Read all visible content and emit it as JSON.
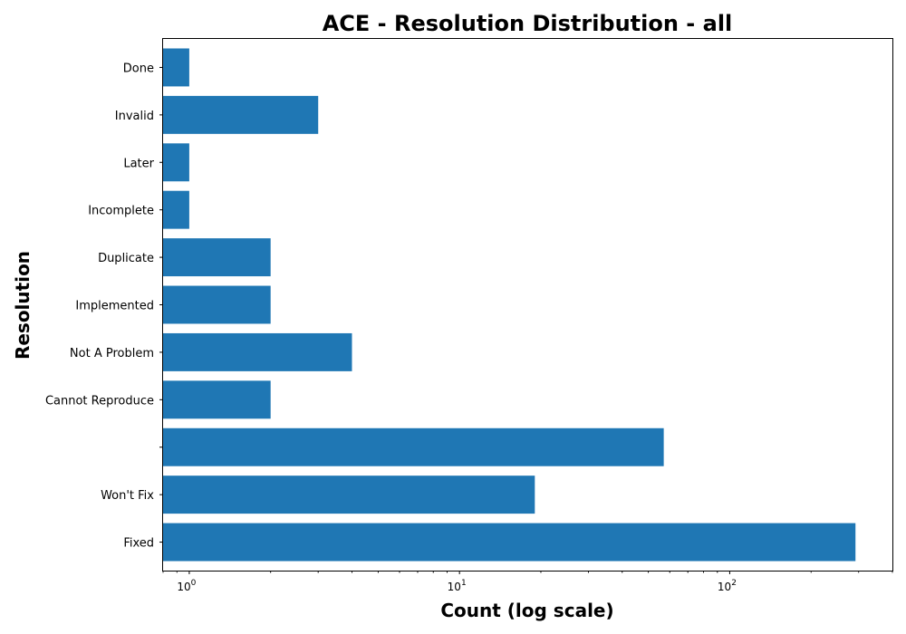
{
  "chart_data": {
    "type": "bar",
    "orientation": "horizontal",
    "title": "ACE - Resolution Distribution - all",
    "xlabel": "Count (log scale)",
    "ylabel": "Resolution",
    "x_scale": "log",
    "xlim": [
      0.8,
      400
    ],
    "x_ticks": [
      {
        "value": 1,
        "base": "10",
        "exp": "0"
      },
      {
        "value": 10,
        "base": "10",
        "exp": "1"
      },
      {
        "value": 100,
        "base": "10",
        "exp": "2"
      }
    ],
    "categories": [
      "Fixed",
      "Won't Fix",
      "",
      "Cannot Reproduce",
      "Not A Problem",
      "Implemented",
      "Duplicate",
      "Incomplete",
      "Later",
      "Invalid",
      "Done"
    ],
    "values": [
      292,
      19,
      57,
      2,
      4,
      2,
      2,
      1,
      1,
      3,
      1
    ],
    "grid": false,
    "legend": "none",
    "color": "#1f77b4"
  }
}
